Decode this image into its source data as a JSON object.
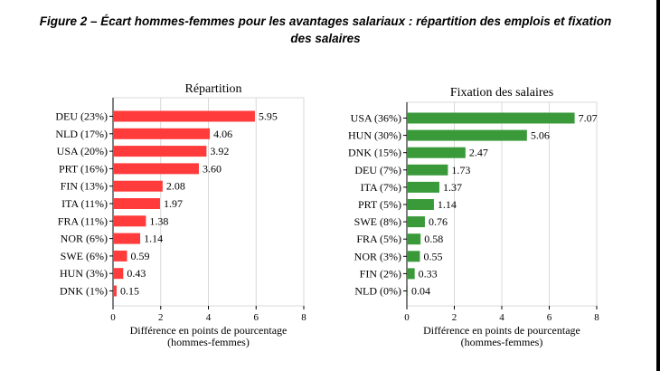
{
  "figure_title": "Figure 2 – Écart hommes-femmes pour les avantages salariaux : répartition des emplois et fixation des salaires",
  "colors": {
    "left": "#ff3b3b",
    "right": "#3a9a3a",
    "grid": "#d9d9d9",
    "text": "#000000"
  },
  "chart_data": [
    {
      "type": "bar",
      "orientation": "horizontal",
      "title": "Répartition",
      "xlabel_line1": "Différence en points de pourcentage",
      "xlabel_line2": "(hommes-femmes)",
      "xlim": [
        0,
        8
      ],
      "xticks": [
        0,
        2,
        4,
        6,
        8
      ],
      "grid": true,
      "categories": [
        "DEU (23%)",
        "NLD (17%)",
        "USA (20%)",
        "PRT (16%)",
        "FIN (13%)",
        "ITA (11%)",
        "FRA (11%)",
        "NOR (6%)",
        "SWE (6%)",
        "HUN (3%)",
        "DNK (1%)"
      ],
      "values": [
        5.95,
        4.06,
        3.92,
        3.6,
        2.08,
        1.97,
        1.38,
        1.14,
        0.59,
        0.43,
        0.15
      ],
      "value_labels": [
        "5.95",
        "4.06",
        "3.92",
        "3.60",
        "2.08",
        "1.97",
        "1.38",
        "1.14",
        "0.59",
        "0.43",
        "0.15"
      ],
      "color": "#ff3b3b"
    },
    {
      "type": "bar",
      "orientation": "horizontal",
      "title": "Fixation des salaires",
      "xlabel_line1": "Différence en points de pourcentage",
      "xlabel_line2": "(hommes-femmes)",
      "xlim": [
        0,
        8
      ],
      "xticks": [
        0,
        2,
        4,
        6,
        8
      ],
      "grid": true,
      "categories": [
        "USA (36%)",
        "HUN (30%)",
        "DNK (15%)",
        "DEU (7%)",
        "ITA (7%)",
        "PRT (5%)",
        "SWE (8%)",
        "FRA (5%)",
        "NOR (3%)",
        "FIN (2%)",
        "NLD (0%)"
      ],
      "values": [
        7.07,
        5.06,
        2.47,
        1.73,
        1.37,
        1.14,
        0.76,
        0.58,
        0.55,
        0.33,
        0.04
      ],
      "value_labels": [
        "7.07",
        "5.06",
        "2.47",
        "1.73",
        "1.37",
        "1.14",
        "0.76",
        "0.58",
        "0.55",
        "0.33",
        "0.04"
      ],
      "color": "#3a9a3a"
    }
  ]
}
